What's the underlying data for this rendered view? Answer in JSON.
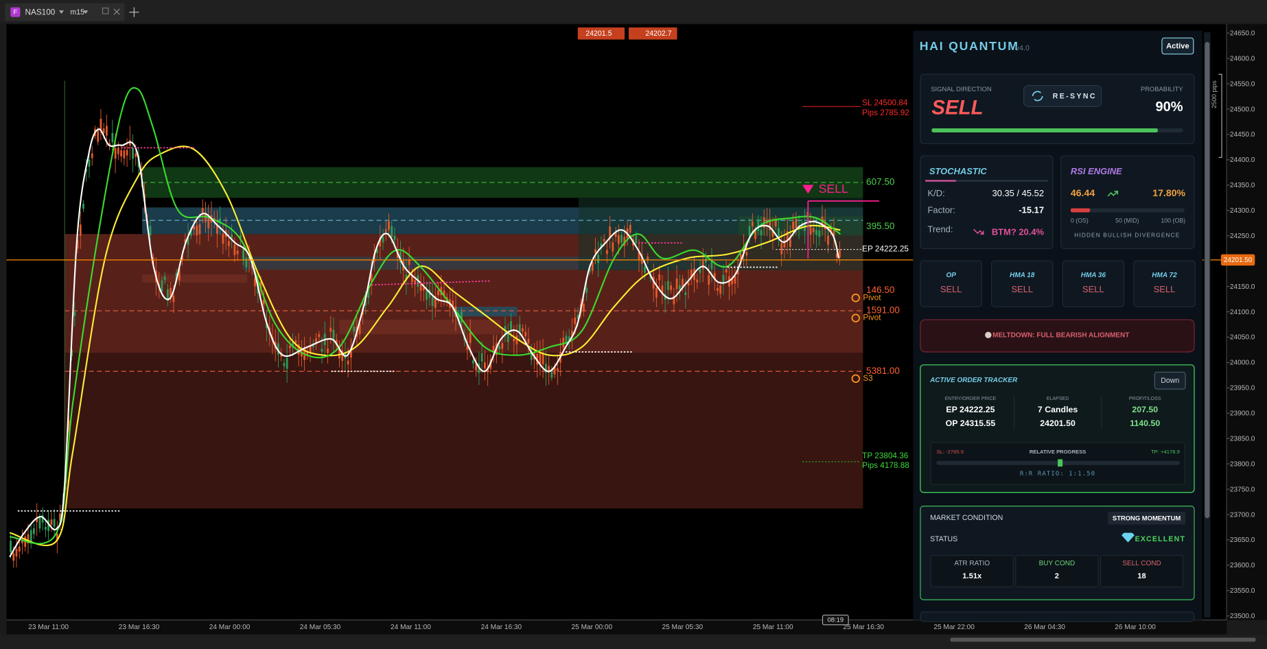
{
  "tab": {
    "icon": "F",
    "symbol": "NAS100",
    "timeframe": "m15"
  },
  "chart": {
    "price_badges": [
      "24201.5",
      "24202.7"
    ],
    "price_axis": [
      "24650.0",
      "24600.0",
      "24550.0",
      "24500.0",
      "24450.0",
      "24400.0",
      "24350.0",
      "24300.0",
      "24250.0",
      "24200.0",
      "24150.0",
      "24100.0",
      "24050.0",
      "24000.0",
      "23950.0",
      "23900.0",
      "23850.0",
      "23800.0",
      "23750.0",
      "23700.0",
      "23650.0",
      "23600.0",
      "23550.0",
      "23500.0"
    ],
    "time_axis": [
      "23 Mar 11:00",
      "23 Mar 16:30",
      "24 Mar 00:00",
      "24 Mar 05:30",
      "24 Mar 11:00",
      "24 Mar 16:30",
      "25 Mar 00:00",
      "25 Mar 05:30",
      "25 Mar 11:00",
      "25 Mar 16:30",
      "25 Mar 22:00",
      "26 Mar 04:30",
      "26 Mar 10:00"
    ],
    "current_price": "24201.50",
    "cursor_time": "08:19",
    "range_label": "2500 pips",
    "levels": {
      "sl": "SL 24500.84",
      "sl_pips": "Pips 2785.92",
      "zone_1": "607.50",
      "signal": "SELL",
      "zone_2": "395.50",
      "entry": "EP 24222.25",
      "zone_3": "146.50",
      "zone_4": "1591.00",
      "zone_5": "5381.00",
      "tp": "TP 23804.36",
      "tp_pips": "Pips 4178.88"
    },
    "pivot_labels": [
      "Pivot",
      "Pivot",
      "S3"
    ]
  },
  "panel": {
    "title": "HAI QUANTUM",
    "version": "v4.0",
    "status_button": "Active",
    "signal": {
      "label": "SIGNAL DIRECTION",
      "direction": "SELL",
      "button": "RE-SYNC",
      "probability_label": "PROBABILITY",
      "probability": "90%"
    },
    "stochastic": {
      "title": "STOCHASTIC",
      "rows": [
        [
          "K/D:",
          "30.35 / 45.52"
        ],
        [
          "Factor:",
          "-15.17"
        ],
        [
          "Trend:",
          "BTM? 20.4%"
        ]
      ]
    },
    "rsi": {
      "title": "RSI ENGINE",
      "value": "46.44",
      "change": "17.80%",
      "scale": [
        "0 (OS)",
        "50 (MID)",
        "100 (OB)"
      ],
      "note": "HIDDEN BULLISH DIVERGENCE"
    },
    "indicators": [
      [
        "OP",
        "SELL"
      ],
      [
        "HMA 18",
        "SELL"
      ],
      [
        "HMA 36",
        "SELL"
      ],
      [
        "HMA 72",
        "SELL"
      ]
    ],
    "banner": "MELTDOWN: FULL BEARISH ALIGNMENT",
    "tracker": {
      "title": "ACTIVE ORDER TRACKER",
      "button": "Down",
      "columns": [
        {
          "head": "ENTRY/ORDER PRICE",
          "lines": [
            "EP  24222.25",
            "OP  24315.55"
          ]
        },
        {
          "head": "ELAPSED",
          "lines": [
            "7 Candles",
            "24201.50"
          ]
        },
        {
          "head": "PROFIT/LOSS",
          "lines": [
            "207.50",
            "1140.50"
          ]
        }
      ],
      "sl": "SL: -2785.9",
      "progress_label": "RELATIVE PROGRESS",
      "tp": "TP: +4178.9",
      "ratio": "R:R RATIO: 1:1.50"
    },
    "market": {
      "title": "MARKET CONDITION",
      "badge": "STRONG MOMENTUM",
      "status_label": "STATUS",
      "status": "EXCELLENT",
      "boxes": [
        [
          "ATR RATIO",
          "1.51x"
        ],
        [
          "BUY COND",
          "2"
        ],
        [
          "SELL COND",
          "18"
        ]
      ]
    }
  }
}
